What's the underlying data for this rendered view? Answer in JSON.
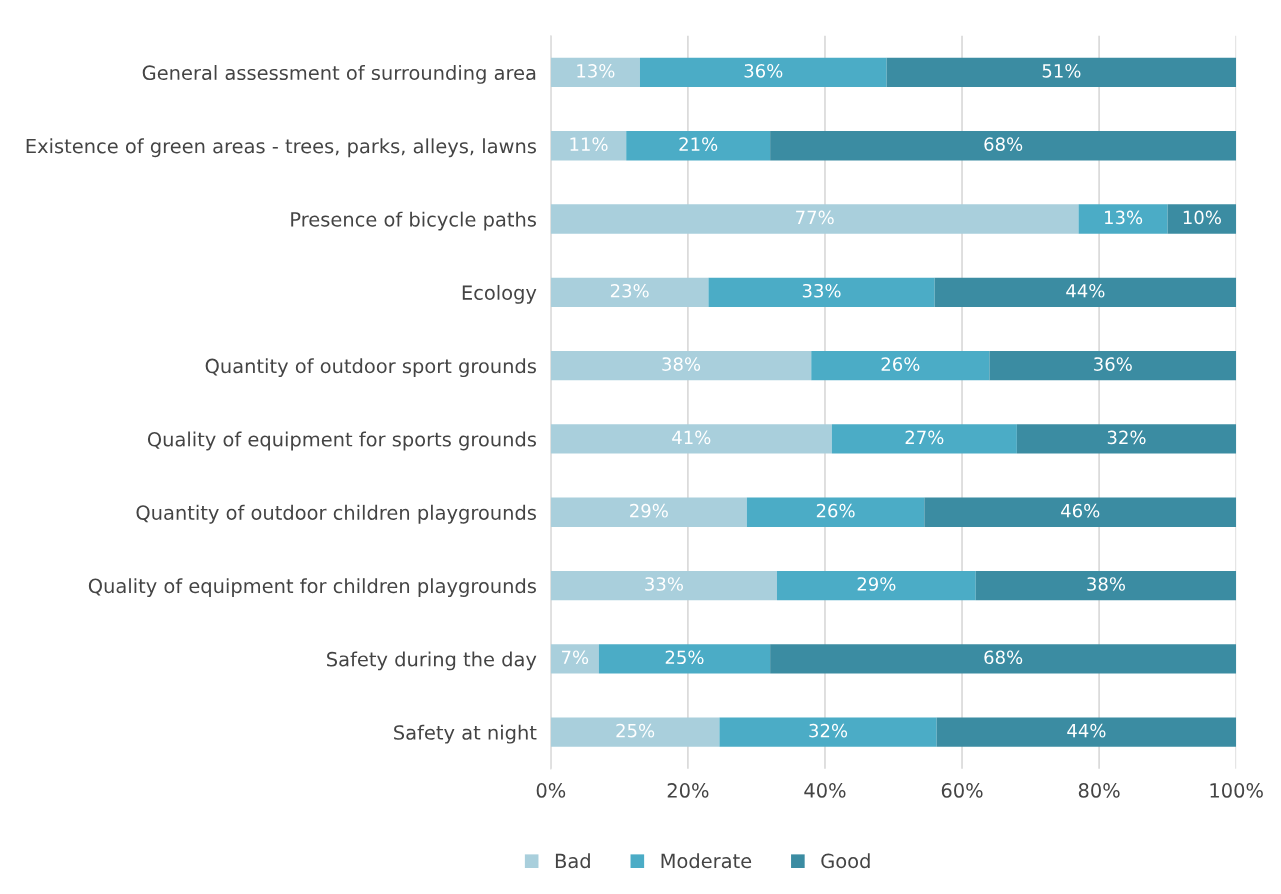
{
  "chart_data": {
    "type": "bar",
    "orientation": "horizontal",
    "stacked": true,
    "categories": [
      "General assessment of surrounding area",
      "Existence of green areas - trees, parks, alleys, lawns",
      "Presence of bicycle paths",
      "Ecology",
      "Quantity of outdoor sport grounds",
      "Quality of equipment for sports grounds",
      "Quantity of outdoor children playgrounds",
      "Quality of equipment for children playgrounds",
      "Safety during the day",
      "Safety at night"
    ],
    "series": [
      {
        "name": "Bad",
        "color": "#a9cfdc",
        "values": [
          13,
          11,
          77,
          23,
          38,
          41,
          28.6,
          33,
          7,
          24.6
        ],
        "value_labels": [
          "13%",
          "11%",
          "77%",
          "23%",
          "38%",
          "41%",
          "29%",
          "33%",
          "7%",
          "25%"
        ]
      },
      {
        "name": "Moderate",
        "color": "#4bacc6",
        "values": [
          36,
          21,
          13,
          33,
          26,
          27,
          25.9,
          29,
          25,
          31.7
        ],
        "value_labels": [
          "36%",
          "21%",
          "13%",
          "33%",
          "26%",
          "27%",
          "26%",
          "29%",
          "25%",
          "32%"
        ]
      },
      {
        "name": "Good",
        "color": "#3b8ca2",
        "values": [
          51,
          68,
          10,
          44,
          36,
          32,
          45.5,
          38,
          68,
          43.7
        ],
        "value_labels": [
          "51%",
          "68%",
          "10%",
          "44%",
          "36%",
          "32%",
          "46%",
          "38%",
          "68%",
          "44%"
        ]
      }
    ],
    "xlim": [
      0,
      100
    ],
    "xticks": [
      {
        "value": 0,
        "label": "0%"
      },
      {
        "value": 20,
        "label": "20%"
      },
      {
        "value": 40,
        "label": "40%"
      },
      {
        "value": 60,
        "label": "60%"
      },
      {
        "value": 80,
        "label": "80%"
      },
      {
        "value": 100,
        "label": "100%"
      }
    ],
    "grid": "x",
    "legend": "bottom"
  }
}
